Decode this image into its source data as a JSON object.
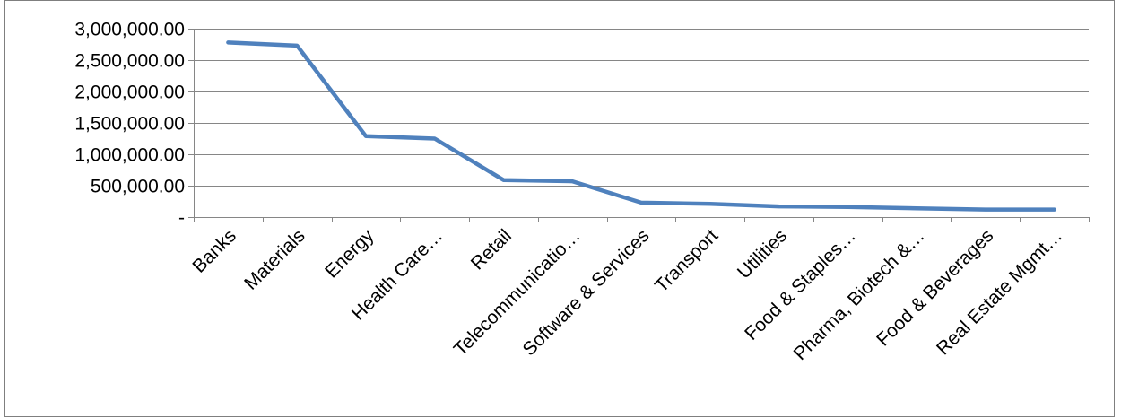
{
  "chart_data": {
    "type": "line",
    "title": "",
    "xlabel": "",
    "ylabel": "",
    "categories": [
      "Banks",
      "Materials",
      "Energy",
      "Health Care…",
      "Retail",
      "Telecommunicatio…",
      "Software & Services",
      "Transport",
      "Utilities",
      "Food & Staples…",
      "Pharma, Biotech &…",
      "Food & Beverages",
      "Real Estate Mgmt…"
    ],
    "series": [
      {
        "values": [
          2780000,
          2730000,
          1290000,
          1250000,
          590000,
          570000,
          230000,
          210000,
          170000,
          160000,
          140000,
          120000,
          120000
        ]
      }
    ],
    "ylim": [
      0,
      3000000
    ],
    "yticks": [
      0,
      500000,
      1000000,
      1500000,
      2000000,
      2500000,
      3000000
    ],
    "ytick_labels": [
      "-",
      "500,000.00",
      "1,000,000.00",
      "1,500,000.00",
      "2,000,000.00",
      "2,500,000.00",
      "3,000,000.00"
    ],
    "grid": true,
    "line_color": "#4F81BD",
    "grid_color": "#868686"
  }
}
